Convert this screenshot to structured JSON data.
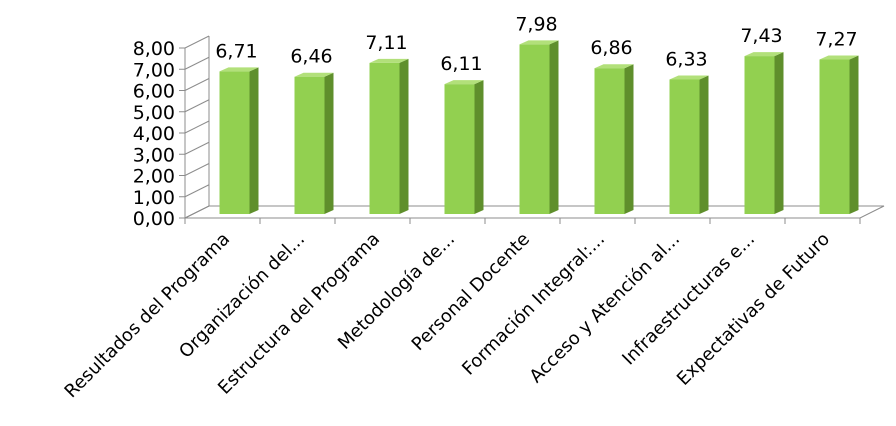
{
  "chart_data": {
    "type": "bar",
    "title": "",
    "xlabel": "",
    "ylabel": "",
    "ylim": [
      0,
      8
    ],
    "yticks": [
      "0,00",
      "1,00",
      "2,00",
      "3,00",
      "4,00",
      "5,00",
      "6,00",
      "7,00",
      "8,00"
    ],
    "categories": [
      "Resultados del Programa",
      "Organización del...",
      "Estructura del Programa",
      "Metodología de...",
      "Personal Docente",
      "Formación Integral:...",
      "Acceso y Atención al...",
      "Infraestructuras e...",
      "Expectativas de Futuro"
    ],
    "values": [
      6.71,
      6.46,
      7.11,
      6.11,
      7.98,
      6.86,
      6.33,
      7.43,
      7.27
    ],
    "data_labels": [
      "6,71",
      "6,46",
      "7,11",
      "6,11",
      "7,98",
      "6,86",
      "6,33",
      "7,43",
      "7,27"
    ],
    "grid": false,
    "legend": "none",
    "colors": {
      "bar_front": "#92d050",
      "bar_side": "#5f8f2c",
      "bar_top": "#b2e07a",
      "axis": "#8c8c8c"
    }
  }
}
